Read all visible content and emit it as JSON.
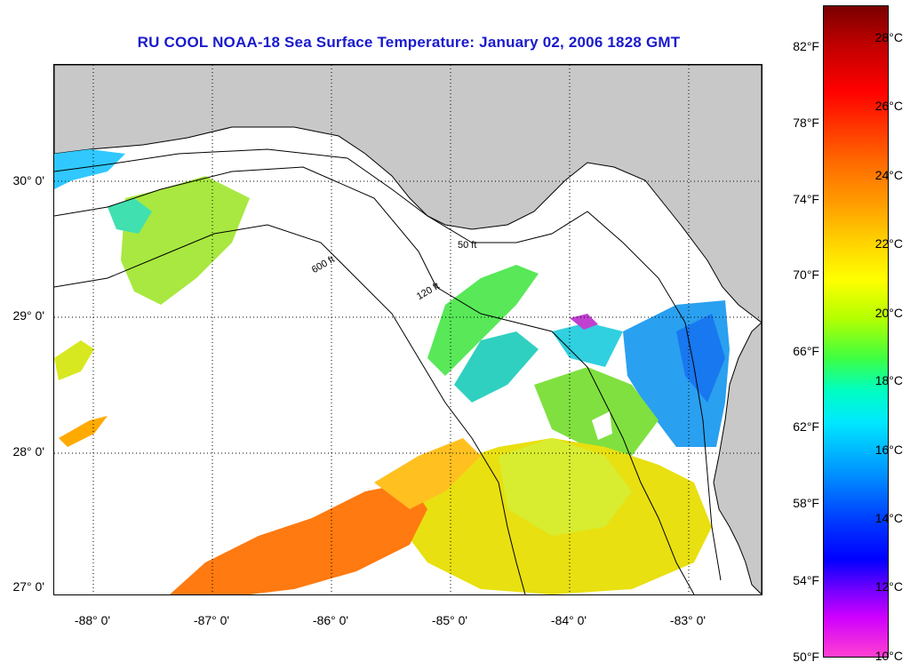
{
  "title": "RU COOL  NOAA-18  Sea Surface Temperature:  January 02, 2006 1828 GMT",
  "map": {
    "latitude_labels": [
      "30° 0'",
      "29° 0'",
      "28° 0'",
      "27° 0'"
    ],
    "longitude_labels": [
      "-88° 0'",
      "-87° 0'",
      "-86° 0'",
      "-85° 0'",
      "-84° 0'",
      "-83° 0'"
    ],
    "contour_labels": [
      "50 ft",
      "120 ft",
      "600 ft"
    ],
    "colors": {
      "land": "#c8c8c8",
      "no_data": "#ffffff",
      "gridline": "#000000"
    }
  },
  "colorbar": {
    "fahrenheit_labels": [
      "82°F",
      "78°F",
      "74°F",
      "70°F",
      "66°F",
      "62°F",
      "58°F",
      "54°F",
      "50°F"
    ],
    "celsius_labels": [
      "28°C",
      "26°C",
      "24°C",
      "22°C",
      "20°C",
      "18°C",
      "16°C",
      "14°C",
      "12°C",
      "10°C"
    ]
  }
}
